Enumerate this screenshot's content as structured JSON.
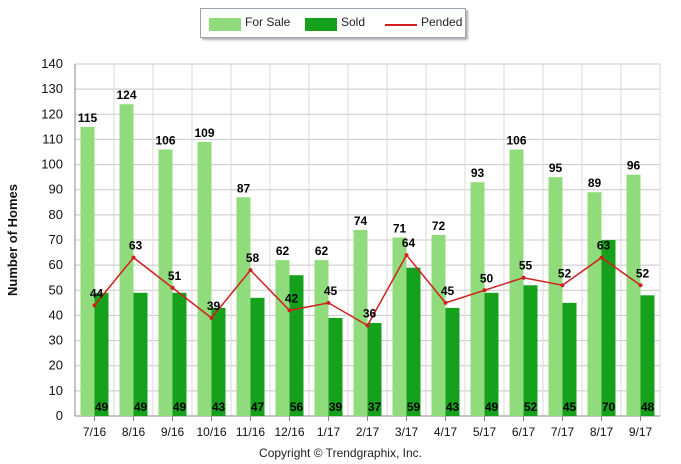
{
  "chart_data": {
    "type": "bar",
    "title": "",
    "xlabel": "",
    "ylabel": "Number of Homes",
    "ylim": [
      0,
      140
    ],
    "ytick_step": 10,
    "grid": true,
    "legend_position": "top-center",
    "categories": [
      "7/16",
      "8/16",
      "9/16",
      "10/16",
      "11/16",
      "12/16",
      "1/17",
      "2/17",
      "3/17",
      "4/17",
      "5/17",
      "6/17",
      "7/17",
      "8/17",
      "9/17"
    ],
    "series": [
      {
        "name": "For Sale",
        "kind": "bar",
        "color": "#90dc7c",
        "values": [
          115,
          124,
          106,
          109,
          87,
          62,
          62,
          74,
          71,
          72,
          93,
          106,
          95,
          89,
          96
        ]
      },
      {
        "name": "Sold",
        "kind": "bar",
        "color": "#16a11d",
        "values": [
          49,
          49,
          49,
          43,
          47,
          56,
          39,
          37,
          59,
          43,
          49,
          52,
          45,
          70,
          48
        ]
      },
      {
        "name": "Pended",
        "kind": "line",
        "color": "#d21e1e",
        "values": [
          44,
          63,
          51,
          39,
          58,
          42,
          45,
          36,
          64,
          45,
          50,
          55,
          52,
          63,
          52
        ]
      }
    ]
  },
  "legend": {
    "for_sale": "For Sale",
    "sold": "Sold",
    "pended": "Pended"
  },
  "copyright": "Copyright © Trendgraphix, Inc."
}
